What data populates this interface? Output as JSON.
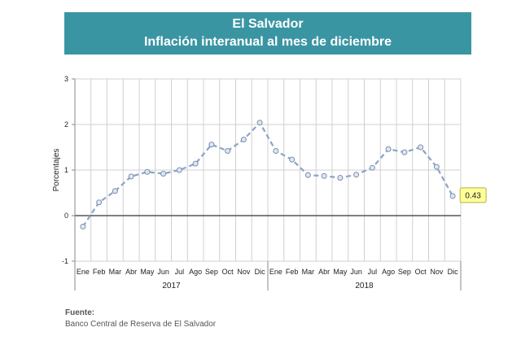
{
  "header": {
    "title": "El Salvador",
    "subtitle": "Inflación interanual al mes de diciembre"
  },
  "source": {
    "label": "Fuente:",
    "text": "Banco Central de Reserva de El Salvador"
  },
  "colors": {
    "banner": "#3a95a3",
    "line": "#8ba3c7",
    "marker_fill": "#dfe7f2",
    "grid": "#d0d0d0",
    "callout_fill": "#ffff99"
  },
  "chart_data": {
    "type": "line",
    "ylabel": "Porcentajes",
    "ylim": [
      -1,
      3
    ],
    "yticks": [
      -1,
      0,
      1,
      2,
      3
    ],
    "grid": true,
    "line_style": "dashed",
    "categories": [
      "Ene",
      "Feb",
      "Mar",
      "Abr",
      "May",
      "Jun",
      "Jul",
      "Ago",
      "Sep",
      "Oct",
      "Nov",
      "Dic",
      "Ene",
      "Feb",
      "Mar",
      "Abr",
      "May",
      "Jun",
      "Jul",
      "Ago",
      "Sep",
      "Oct",
      "Nov",
      "Dic"
    ],
    "groups": [
      {
        "label": "2017",
        "count": 12
      },
      {
        "label": "2018",
        "count": 12
      }
    ],
    "series": [
      {
        "values": [
          -0.24,
          0.29,
          0.54,
          0.86,
          0.96,
          0.92,
          1.0,
          1.14,
          1.56,
          1.42,
          1.67,
          2.04,
          1.42,
          1.23,
          0.89,
          0.87,
          0.83,
          0.9,
          1.05,
          1.46,
          1.39,
          1.5,
          1.07,
          0.43
        ]
      }
    ],
    "callout": {
      "index": 23,
      "text": "0.43"
    }
  }
}
